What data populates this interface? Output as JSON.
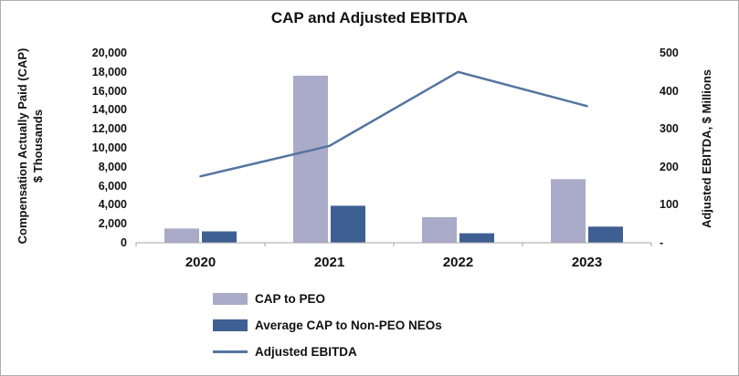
{
  "title": "CAP and Adjusted EBITDA",
  "chart_data": {
    "type": "combo-bar-line",
    "title": "CAP and Adjusted EBITDA",
    "categories": [
      "2020",
      "2021",
      "2022",
      "2023"
    ],
    "bar_series": [
      {
        "name": "CAP to PEO",
        "color": "#a9abc9",
        "values": [
          1500,
          17600,
          2700,
          6700
        ]
      },
      {
        "name": "Average CAP to Non-PEO NEOs",
        "color": "#3e5f91",
        "values": [
          1200,
          3900,
          1000,
          1700
        ]
      }
    ],
    "line_series": {
      "name": "Adjusted EBITDA",
      "color": "#54759f",
      "values": [
        175,
        255,
        450,
        360
      ]
    },
    "left_axis": {
      "label_line1": "Compensation Actually Paid (CAP)",
      "label_line2": "$ Thousands",
      "min": 0,
      "max": 20000,
      "step": 2000,
      "ticks": [
        "0",
        "2,000",
        "4,000",
        "6,000",
        "8,000",
        "10,000",
        "12,000",
        "14,000",
        "16,000",
        "18,000",
        "20,000"
      ]
    },
    "right_axis": {
      "label": "Adjusted EBITDA, $ Millions",
      "min": 0,
      "max": 500,
      "step": 100,
      "ticks": [
        "-",
        "100",
        "200",
        "300",
        "400",
        "500"
      ]
    },
    "axis_color": "#a6a6a6",
    "legend_position": "bottom-left"
  }
}
